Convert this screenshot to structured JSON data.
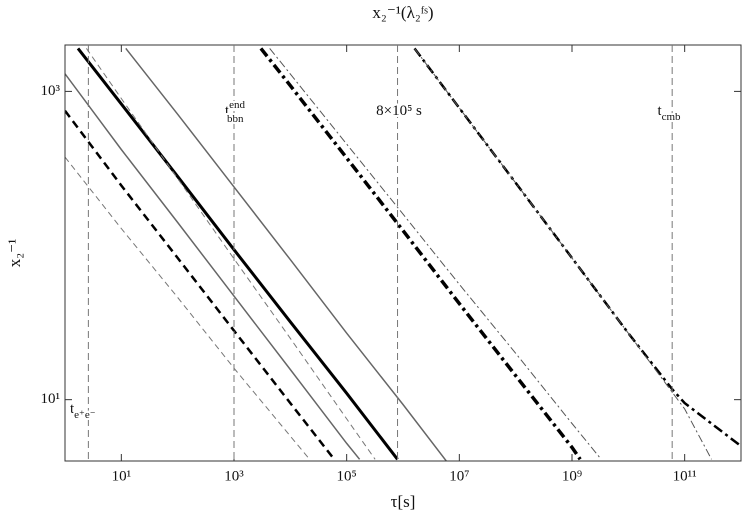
{
  "chart_data": {
    "type": "line",
    "title": "x₂⁻¹(λ₂ᶠˢ)",
    "x_label": "τ[s]",
    "y_label": "x₂⁻¹",
    "log_x": true,
    "log_y": true,
    "xlim": [
      1,
      1000000000000
    ],
    "ylim": [
      4,
      2000
    ],
    "xticks": [
      {
        "value": 10,
        "label": "10¹"
      },
      {
        "value": 1000,
        "label": "10³"
      },
      {
        "value": 100000,
        "label": "10⁵"
      },
      {
        "value": 10000000,
        "label": "10⁷"
      },
      {
        "value": 1000000000,
        "label": "10⁹"
      },
      {
        "value": 100000000000,
        "label": "10¹¹"
      }
    ],
    "yticks": [
      {
        "value": 10,
        "label": "10¹"
      },
      {
        "value": 1000,
        "label": "10³"
      }
    ],
    "series": [
      {
        "color": "#000000",
        "width": 3,
        "dash": "none",
        "x": [
          1.7,
          10,
          100,
          1000,
          10000,
          100000,
          800000
        ],
        "values": [
          1900,
          830,
          280,
          94,
          32,
          11,
          4.1
        ]
      },
      {
        "color": "#666666",
        "width": 1.5,
        "dash": "none",
        "x": [
          12,
          100,
          1000,
          10000,
          100000,
          1000000,
          6200000
        ],
        "values": [
          1900,
          710,
          240,
          81,
          27,
          9.3,
          3.9
        ]
      },
      {
        "color": "#666666",
        "width": 1.5,
        "dash": "none",
        "x": [
          1,
          10,
          100,
          1000,
          10000,
          100000,
          170000
        ],
        "values": [
          1300,
          420,
          141,
          47,
          15.7,
          5.2,
          4.1
        ]
      },
      {
        "color": "#777777",
        "width": 1,
        "dash": "6 4",
        "x": [
          2.4,
          10,
          100,
          1000,
          10000,
          100000,
          320000
        ],
        "values": [
          1900,
          900,
          272,
          82,
          25,
          7.5,
          4.1
        ]
      },
      {
        "color": "#000000",
        "width": 2.5,
        "dash": "8 5",
        "x": [
          1,
          10,
          100,
          1000,
          10000,
          60000
        ],
        "values": [
          750,
          245,
          83,
          28,
          9.5,
          4.1
        ]
      },
      {
        "color": "#777777",
        "width": 1,
        "dash": "6 4",
        "x": [
          1,
          10,
          100,
          1000,
          10000,
          22000
        ],
        "values": [
          375,
          129,
          46,
          16,
          5.8,
          4.1
        ]
      },
      {
        "color": "#000000",
        "width": 3.5,
        "dash": "10 4 3 4",
        "x": [
          3000,
          10000,
          100000,
          1000000,
          10000000,
          100000000,
          1000000000,
          1400000000
        ],
        "values": [
          1900,
          1090,
          370,
          125,
          42,
          14.3,
          4.9,
          4.1
        ]
      },
      {
        "color": "#555555",
        "width": 1,
        "dash": "8 3 2 3",
        "x": [
          4300,
          100000,
          1000000,
          10000000,
          100000000,
          1000000000,
          3300000000
        ],
        "values": [
          1900,
          455,
          160,
          56,
          20,
          7,
          4.1
        ]
      },
      {
        "color": "#000000",
        "width": 2.5,
        "dash": "10 4 3 4",
        "x": [
          1600000,
          10000000,
          100000000,
          1000000000,
          10000000000,
          60000000000,
          100000000000,
          1000000000000
        ],
        "values": [
          1900,
          780,
          255,
          83,
          27,
          11.7,
          9.5,
          5
        ]
      },
      {
        "color": "#555555",
        "width": 1,
        "dash": "8 3 2 3",
        "x": [
          1600000,
          10000000,
          100000000,
          1000000000,
          10000000000,
          100000000000,
          300000000000
        ],
        "values": [
          1900,
          780,
          255,
          83,
          27,
          8.7,
          4.1
        ]
      }
    ],
    "annotations": [
      {
        "x": 2.6,
        "label": "t",
        "sub": "e⁺e⁻"
      },
      {
        "x": 1000,
        "label": "t",
        "sub": "bbn",
        "sup": "end"
      },
      {
        "x": 800000,
        "label": "8×10⁵ s"
      },
      {
        "x": 60000000000,
        "label": "t",
        "sub": "cmb"
      }
    ]
  }
}
